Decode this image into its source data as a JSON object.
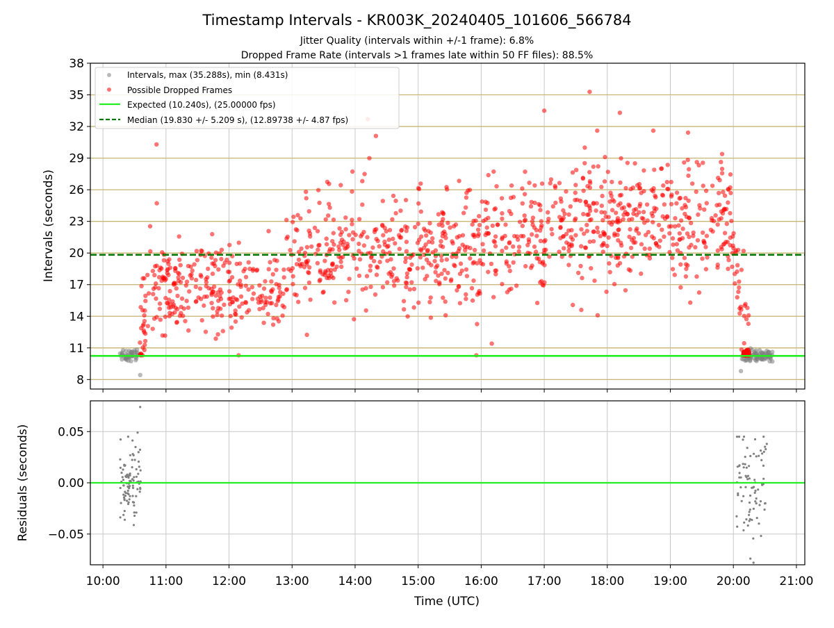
{
  "figure": {
    "title": "Timestamp Intervals - KR003K_20240405_101606_566784",
    "subtitle_1": "Jitter Quality (intervals within +/-1 frame): 6.8%",
    "subtitle_2": "Dropped Frame Rate (intervals >1 frames late within 50 FF files): 88.5%",
    "xlabel": "Time (UTC)"
  },
  "colors": {
    "intervals": "#808080",
    "dropped": "#ff0000",
    "expected": "#22ee22",
    "median": "#007700",
    "hline": "#c8b468",
    "grid": "#c8c8c8"
  },
  "chart_data": [
    {
      "type": "scatter",
      "name": "intervals",
      "ylabel": "Intervals (seconds)",
      "xlim": [
        "09:48",
        "21:08"
      ],
      "ylim": [
        7.1,
        38
      ],
      "yticks": [
        "8",
        "11",
        "14",
        "17",
        "20",
        "23",
        "26",
        "29",
        "32",
        "35",
        "38"
      ],
      "xticks": [
        "10:00",
        "11:00",
        "12:00",
        "13:00",
        "14:00",
        "15:00",
        "16:00",
        "17:00",
        "18:00",
        "19:00",
        "20:00",
        "21:00"
      ],
      "grid": true,
      "legend_position": "top-left",
      "legend": [
        "Intervals, max (35.288s), min (8.431s)",
        "Possible Dropped Frames",
        "Expected (10.240s), (25.00000 fps)",
        "Median (19.830 +/- 5.209 s), (12.89738 +/- 4.87 fps)"
      ],
      "expected_value": 10.24,
      "median_value": 19.83,
      "horizontal_lines": [
        8,
        11,
        14,
        17,
        20,
        23,
        26,
        29,
        32,
        35
      ],
      "series": [
        {
          "name": "Intervals",
          "color": "#808080",
          "max": 35.288,
          "min": 8.431,
          "time_ranges": [
            [
              "10:16",
              "10:37"
            ],
            [
              "20:06",
              "20:38"
            ]
          ],
          "value_range": [
            8.4,
            11.0
          ]
        },
        {
          "name": "Possible Dropped Frames",
          "color": "#ff0000",
          "time_range": [
            "10:36",
            "20:14"
          ],
          "value_range": [
            11.9,
            35.3
          ]
        }
      ]
    },
    {
      "type": "scatter",
      "name": "residuals",
      "ylabel": "Residuals (seconds)",
      "xlim": [
        "09:48",
        "21:08"
      ],
      "ylim": [
        -0.08,
        0.08
      ],
      "yticks": [
        "−0.05",
        "0.00",
        "0.05"
      ],
      "xticks": [
        "10:00",
        "11:00",
        "12:00",
        "13:00",
        "14:00",
        "15:00",
        "16:00",
        "17:00",
        "18:00",
        "19:00",
        "20:00",
        "21:00"
      ],
      "grid": true,
      "zero_line": 0,
      "series": [
        {
          "name": "Residuals",
          "color": "#808080",
          "time_ranges": [
            [
              "10:16",
              "10:37"
            ],
            [
              "20:05",
              "20:35"
            ]
          ],
          "value_range": [
            -0.078,
            0.074
          ]
        }
      ]
    }
  ]
}
